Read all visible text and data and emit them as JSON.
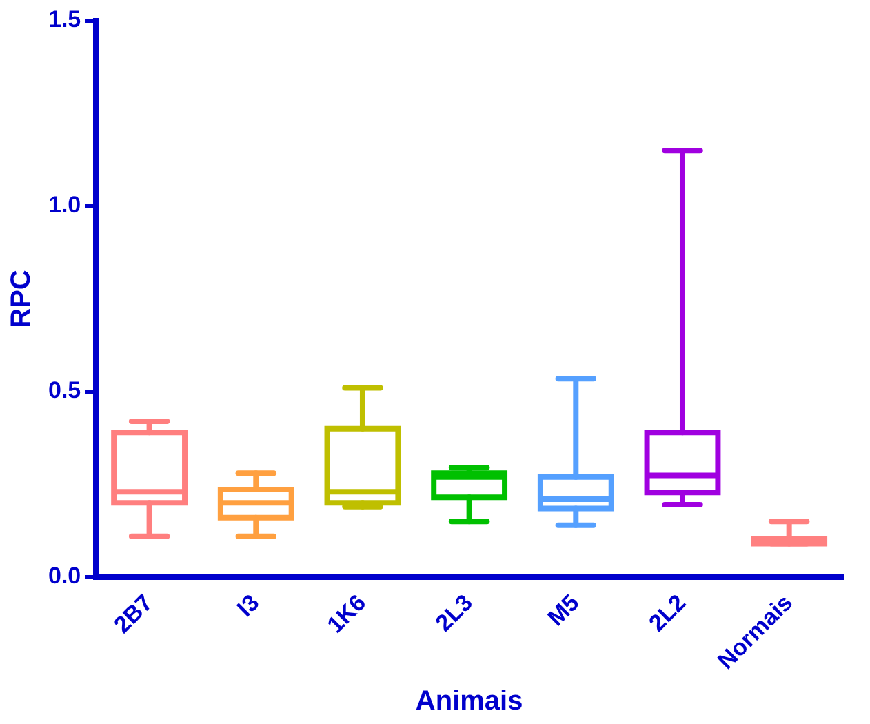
{
  "chart_data": {
    "type": "box",
    "xlabel": "Animais",
    "ylabel": "RPC",
    "categories": [
      "2B7",
      "I3",
      "1K6",
      "2L3",
      "M5",
      "2L2",
      "Normais"
    ],
    "colors": [
      "#ff7f7f",
      "#ffa040",
      "#bfbf00",
      "#00c000",
      "#55a0ff",
      "#a000e0",
      "#ff8080"
    ],
    "boxes": [
      {
        "low": 0.11,
        "q1": 0.2,
        "median": 0.23,
        "q3": 0.39,
        "high": 0.42
      },
      {
        "low": 0.11,
        "q1": 0.16,
        "median": 0.2,
        "q3": 0.236,
        "high": 0.28
      },
      {
        "low": 0.19,
        "q1": 0.2,
        "median": 0.23,
        "q3": 0.4,
        "high": 0.51
      },
      {
        "low": 0.15,
        "q1": 0.215,
        "median": 0.27,
        "q3": 0.28,
        "high": 0.295
      },
      {
        "low": 0.14,
        "q1": 0.185,
        "median": 0.21,
        "q3": 0.27,
        "high": 0.535
      },
      {
        "low": 0.195,
        "q1": 0.228,
        "median": 0.274,
        "q3": 0.39,
        "high": 1.15
      },
      {
        "low": 0.09,
        "q1": 0.09,
        "median": 0.1,
        "q3": 0.103,
        "high": 0.15
      }
    ],
    "ylim": [
      0,
      1.5
    ],
    "yticks": [
      {
        "value": 0,
        "label": "0.0"
      },
      {
        "value": 0.5,
        "label": "0.5"
      },
      {
        "value": 1,
        "label": "1.0"
      },
      {
        "value": 1.5,
        "label": "1.5"
      }
    ],
    "grid": false,
    "legend": false
  }
}
